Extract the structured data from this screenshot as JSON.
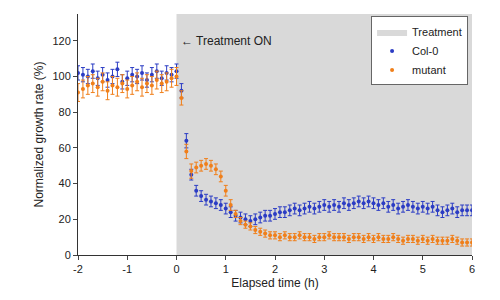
{
  "chart_data": {
    "type": "scatter",
    "x_label": "Elapsed time (h)",
    "y_label": "Normalized growth rate (%)",
    "xlim": [
      -2,
      6
    ],
    "xticks": [
      -2,
      -1,
      0,
      1,
      2,
      3,
      4,
      5,
      6
    ],
    "ylim": [
      0,
      135
    ],
    "yticks": [
      0,
      20,
      40,
      60,
      80,
      100,
      120
    ],
    "grid": false,
    "legend": "upper right",
    "marker": "circle",
    "shading": {
      "name": "Treatment",
      "x0": 0,
      "x1": 6,
      "color": "#d9d9d9"
    },
    "annotation": {
      "text": "← Treatment ON",
      "x": 0,
      "y": 120
    },
    "x": [
      -2.0,
      -1.9,
      -1.8,
      -1.7,
      -1.6,
      -1.5,
      -1.4,
      -1.3,
      -1.2,
      -1.1,
      -1.0,
      -0.9,
      -0.8,
      -0.7,
      -0.6,
      -0.5,
      -0.4,
      -0.3,
      -0.2,
      -0.1,
      0.0,
      0.1,
      0.2,
      0.3,
      0.4,
      0.5,
      0.6,
      0.7,
      0.8,
      0.9,
      1.0,
      1.1,
      1.2,
      1.3,
      1.4,
      1.5,
      1.6,
      1.7,
      1.8,
      1.9,
      2.0,
      2.1,
      2.2,
      2.3,
      2.4,
      2.5,
      2.6,
      2.7,
      2.8,
      2.9,
      3.0,
      3.1,
      3.2,
      3.3,
      3.4,
      3.5,
      3.6,
      3.7,
      3.8,
      3.9,
      4.0,
      4.1,
      4.2,
      4.3,
      4.4,
      4.5,
      4.6,
      4.7,
      4.8,
      4.9,
      5.0,
      5.1,
      5.2,
      5.3,
      5.4,
      5.5,
      5.6,
      5.7,
      5.8,
      5.9,
      6.0
    ],
    "series": [
      {
        "name": "Col-0",
        "color": "#2b3cc4",
        "values": [
          102,
          101,
          100,
          103,
          99,
          101,
          98,
          100,
          104,
          97,
          99,
          101,
          100,
          102,
          98,
          101,
          103,
          99,
          102,
          101,
          103,
          92,
          64,
          45,
          36,
          33,
          31,
          30,
          29,
          28,
          26,
          24,
          22,
          21,
          20,
          19,
          20,
          21,
          22,
          22,
          23,
          24,
          24,
          25,
          26,
          25,
          26,
          27,
          26,
          27,
          28,
          27,
          28,
          27,
          29,
          28,
          29,
          30,
          29,
          30,
          29,
          28,
          29,
          27,
          28,
          26,
          27,
          28,
          27,
          26,
          27,
          26,
          27,
          25,
          24,
          25,
          26,
          24,
          25,
          25,
          25
        ],
        "errors": [
          4,
          4,
          4,
          4,
          4,
          4,
          4,
          4,
          4,
          4,
          4,
          4,
          4,
          4,
          4,
          4,
          4,
          4,
          4,
          4,
          4,
          4,
          4,
          3,
          3,
          3,
          3,
          3,
          3,
          3,
          3,
          3,
          3,
          3,
          3,
          3,
          3,
          3,
          3,
          3,
          3,
          3,
          3,
          3,
          3,
          3,
          3,
          3,
          3,
          3,
          3,
          3,
          3,
          3,
          3,
          3,
          3,
          3,
          3,
          3,
          3,
          3,
          3,
          3,
          3,
          3,
          3,
          3,
          3,
          3,
          3,
          3,
          3,
          3,
          3,
          3,
          3,
          3,
          3,
          3,
          3
        ]
      },
      {
        "name": "mutant",
        "color": "#f07f1a",
        "values": [
          91,
          93,
          95,
          96,
          94,
          97,
          92,
          95,
          94,
          96,
          93,
          95,
          97,
          94,
          96,
          95,
          98,
          96,
          97,
          99,
          100,
          88,
          58,
          47,
          49,
          50,
          51,
          50,
          48,
          44,
          36,
          28,
          23,
          19,
          17,
          16,
          14,
          13,
          12,
          11,
          11,
          10,
          11,
          10,
          10,
          11,
          10,
          10,
          9,
          10,
          10,
          11,
          10,
          10,
          10,
          9,
          10,
          10,
          9,
          10,
          9,
          10,
          9,
          9,
          10,
          9,
          8,
          9,
          9,
          8,
          9,
          8,
          9,
          8,
          8,
          8,
          9,
          8,
          7,
          7,
          7
        ],
        "errors": [
          5,
          5,
          5,
          5,
          5,
          5,
          5,
          5,
          5,
          5,
          5,
          5,
          5,
          5,
          5,
          5,
          5,
          5,
          5,
          5,
          5,
          4,
          4,
          4,
          3,
          3,
          3,
          3,
          3,
          3,
          3,
          3,
          2,
          2,
          2,
          2,
          2,
          2,
          2,
          2,
          2,
          2,
          2,
          2,
          2,
          2,
          2,
          2,
          2,
          2,
          2,
          2,
          2,
          2,
          2,
          2,
          2,
          2,
          2,
          2,
          2,
          2,
          2,
          2,
          2,
          2,
          2,
          2,
          2,
          2,
          2,
          2,
          2,
          2,
          2,
          2,
          2,
          2,
          2,
          2,
          2
        ]
      }
    ]
  }
}
